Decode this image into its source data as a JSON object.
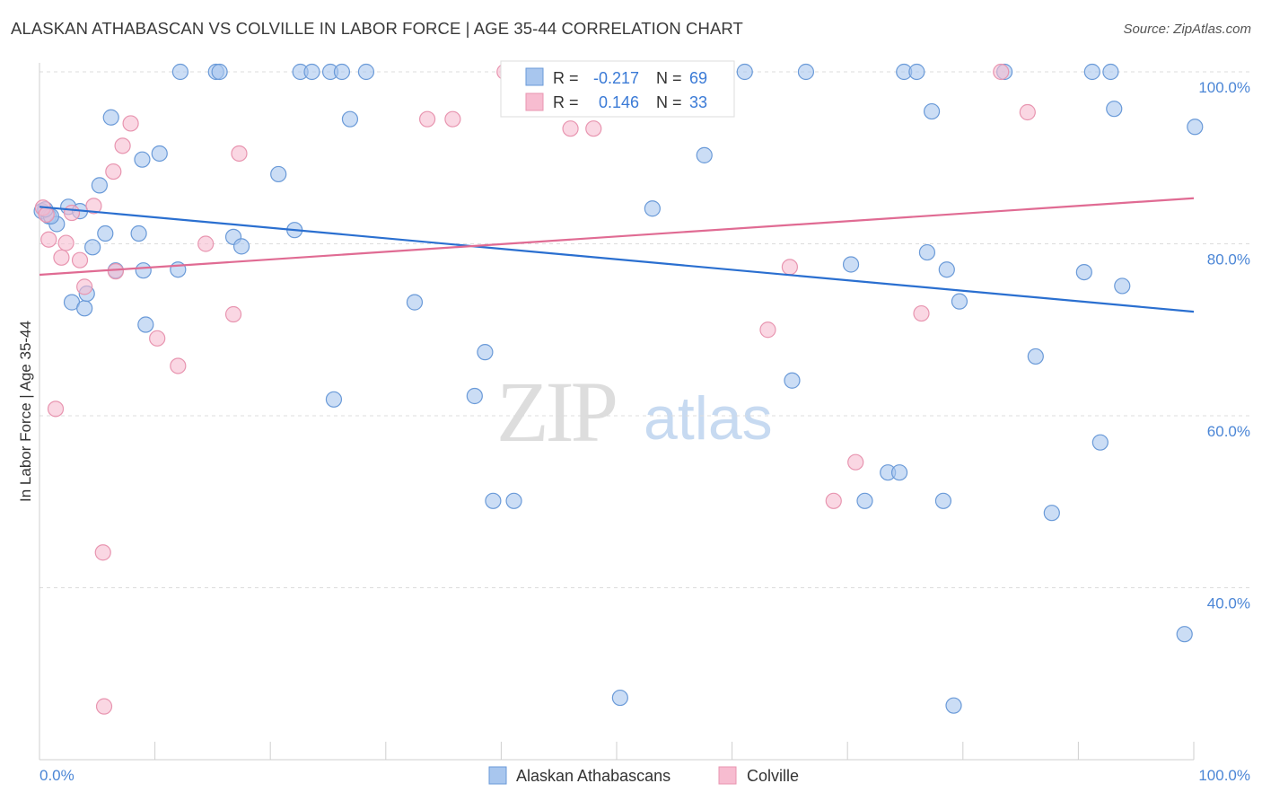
{
  "title": "ALASKAN ATHABASCAN VS COLVILLE IN LABOR FORCE | AGE 35-44 CORRELATION CHART",
  "source": "Source: ZipAtlas.com",
  "watermark": {
    "zip": "ZIP",
    "atlas": "atlas"
  },
  "colors": {
    "blue_fill": "#a8c6ee",
    "blue_stroke": "#6a9ad8",
    "blue_line": "#2a6fd0",
    "pink_fill": "#f7bcd0",
    "pink_stroke": "#e895b0",
    "pink_line": "#e06b93",
    "axis_text": "#4b86d6",
    "grid": "#dcdcdc"
  },
  "legend": {
    "rows": [
      {
        "r_label": "R =",
        "r_value": "-0.217",
        "n_label": "N =",
        "n_value": "69"
      },
      {
        "r_label": "R =",
        "r_value": "0.146",
        "n_label": "N =",
        "n_value": "33"
      }
    ]
  },
  "chart_data": {
    "type": "scatter",
    "xlabel": "",
    "ylabel": "In Labor Force | Age 35-44",
    "xlim": [
      0,
      100
    ],
    "ylim": [
      20,
      102
    ],
    "x_tick_labels": [
      "0.0%",
      "100.0%"
    ],
    "y_ticks": [
      {
        "value": 100,
        "label": "100.0%"
      },
      {
        "value": 80,
        "label": "80.0%"
      },
      {
        "value": 60,
        "label": "60.0%"
      },
      {
        "value": 40,
        "label": "40.0%"
      }
    ],
    "grid": true,
    "legend_position": "bottom",
    "series": [
      {
        "name": "Alaskan Athabascans",
        "color": "#a8c6ee",
        "trend": {
          "x": [
            0,
            100
          ],
          "y": [
            84.3,
            72.1
          ]
        },
        "points": [
          [
            0.2,
            83.8
          ],
          [
            0.8,
            83.2
          ],
          [
            1.5,
            82.3
          ],
          [
            2.5,
            84.3
          ],
          [
            3.5,
            83.8
          ],
          [
            1.0,
            83.2
          ],
          [
            2.8,
            73.2
          ],
          [
            3.9,
            72.5
          ],
          [
            4.1,
            74.2
          ],
          [
            4.6,
            79.6
          ],
          [
            5.2,
            86.8
          ],
          [
            5.7,
            81.2
          ],
          [
            6.2,
            94.7
          ],
          [
            6.6,
            76.9
          ],
          [
            8.6,
            81.2
          ],
          [
            8.9,
            89.8
          ],
          [
            9.0,
            76.9
          ],
          [
            9.2,
            70.6
          ],
          [
            10.4,
            90.5
          ],
          [
            12.0,
            77.0
          ],
          [
            12.2,
            100.0
          ],
          [
            15.3,
            100.0
          ],
          [
            15.6,
            100.0
          ],
          [
            16.8,
            80.8
          ],
          [
            17.5,
            79.7
          ],
          [
            20.7,
            88.1
          ],
          [
            22.1,
            81.6
          ],
          [
            22.6,
            100.0
          ],
          [
            23.6,
            100.0
          ],
          [
            25.2,
            100.0
          ],
          [
            26.2,
            100.0
          ],
          [
            25.5,
            61.9
          ],
          [
            26.9,
            94.5
          ],
          [
            28.3,
            100.0
          ],
          [
            32.5,
            73.2
          ],
          [
            37.7,
            62.3
          ],
          [
            38.6,
            67.4
          ],
          [
            39.3,
            50.1
          ],
          [
            41.1,
            50.1
          ],
          [
            50.3,
            27.2
          ],
          [
            53.1,
            84.1
          ],
          [
            57.6,
            90.3
          ],
          [
            61.1,
            100.0
          ],
          [
            65.2,
            64.1
          ],
          [
            66.4,
            100.0
          ],
          [
            70.3,
            77.6
          ],
          [
            71.5,
            50.1
          ],
          [
            73.5,
            53.4
          ],
          [
            74.5,
            53.4
          ],
          [
            74.9,
            100.0
          ],
          [
            76.0,
            100.0
          ],
          [
            76.9,
            79.0
          ],
          [
            77.3,
            95.4
          ],
          [
            78.6,
            77.0
          ],
          [
            78.3,
            50.1
          ],
          [
            79.2,
            26.3
          ],
          [
            79.7,
            73.3
          ],
          [
            83.6,
            100.0
          ],
          [
            86.3,
            66.9
          ],
          [
            87.7,
            48.7
          ],
          [
            90.5,
            76.7
          ],
          [
            91.2,
            100.0
          ],
          [
            91.9,
            56.9
          ],
          [
            92.8,
            100.0
          ],
          [
            93.1,
            95.7
          ],
          [
            93.8,
            75.1
          ],
          [
            99.2,
            34.6
          ],
          [
            100.1,
            93.6
          ],
          [
            0.5,
            84.0
          ]
        ]
      },
      {
        "name": "Colville",
        "color": "#f7bcd0",
        "trend": {
          "x": [
            0,
            100
          ],
          "y": [
            76.4,
            85.3
          ]
        },
        "points": [
          [
            0.3,
            84.2
          ],
          [
            0.8,
            80.5
          ],
          [
            1.4,
            60.8
          ],
          [
            1.9,
            78.4
          ],
          [
            2.3,
            80.1
          ],
          [
            2.8,
            83.6
          ],
          [
            3.5,
            78.1
          ],
          [
            3.9,
            75.0
          ],
          [
            4.7,
            84.4
          ],
          [
            5.5,
            44.1
          ],
          [
            5.6,
            26.2
          ],
          [
            6.4,
            88.4
          ],
          [
            6.6,
            76.8
          ],
          [
            7.2,
            91.4
          ],
          [
            7.9,
            94.0
          ],
          [
            10.2,
            69.0
          ],
          [
            12.0,
            65.8
          ],
          [
            14.4,
            80.0
          ],
          [
            16.8,
            71.8
          ],
          [
            17.3,
            90.5
          ],
          [
            33.6,
            94.5
          ],
          [
            35.8,
            94.5
          ],
          [
            40.3,
            100.0
          ],
          [
            46.0,
            93.4
          ],
          [
            48.0,
            93.4
          ],
          [
            63.1,
            70.0
          ],
          [
            65.0,
            77.3
          ],
          [
            68.8,
            50.1
          ],
          [
            70.7,
            54.6
          ],
          [
            76.4,
            71.9
          ],
          [
            83.3,
            100.0
          ],
          [
            85.6,
            95.3
          ],
          [
            0.6,
            83.4
          ]
        ]
      }
    ]
  }
}
